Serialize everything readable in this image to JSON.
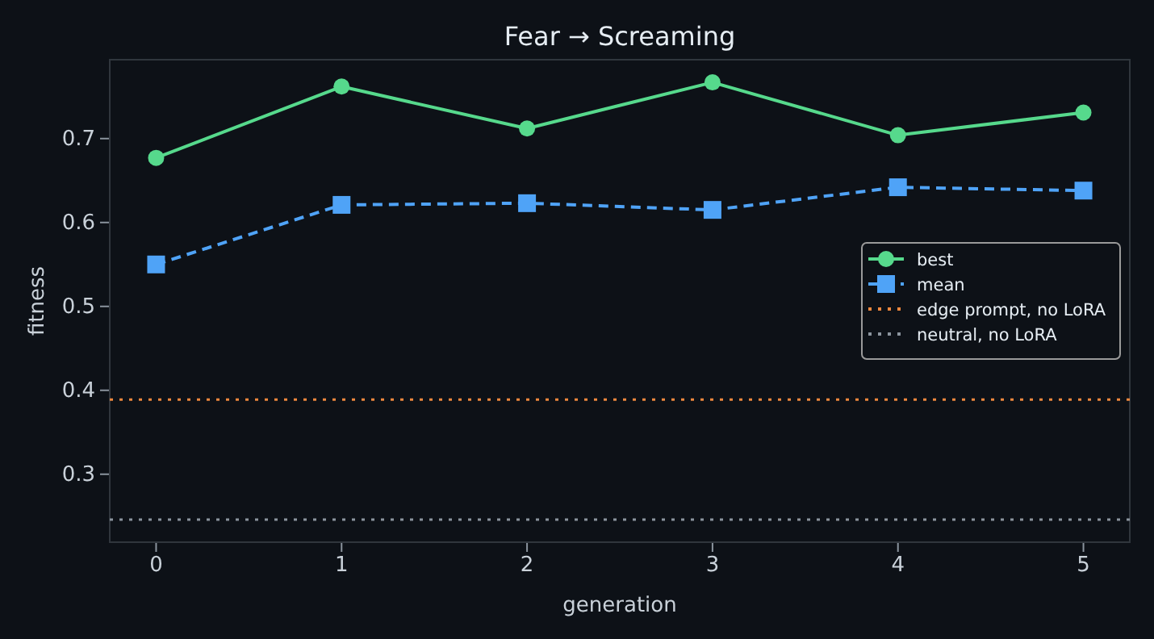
{
  "chart_data": {
    "type": "line",
    "title": "Fear → Screaming",
    "xlabel": "generation",
    "ylabel": "fitness",
    "x": [
      0,
      1,
      2,
      3,
      4,
      5
    ],
    "series": [
      {
        "name": "best",
        "color": "#56d98c",
        "values": [
          0.677,
          0.762,
          0.712,
          0.767,
          0.704,
          0.731
        ],
        "marker": "circle",
        "line_style": "solid"
      },
      {
        "name": "mean",
        "color": "#4fa3f7",
        "values": [
          0.55,
          0.621,
          0.623,
          0.615,
          0.642,
          0.638
        ],
        "marker": "square",
        "line_style": "dashed"
      }
    ],
    "ref_lines": [
      {
        "axis": "y",
        "value": 0.389,
        "label": "edge prompt, no LoRA",
        "color": "#f0883e",
        "line_style": "dotted"
      },
      {
        "axis": "y",
        "value": 0.246,
        "label": "neutral, no LoRA",
        "color": "#8b949e",
        "line_style": "dotted"
      }
    ],
    "xlim": [
      -0.25,
      5.25
    ],
    "xticks": [
      0,
      1,
      2,
      3,
      4,
      5
    ],
    "ylim": [
      0.219,
      0.794
    ],
    "yticks": [
      0.3,
      0.4,
      0.5,
      0.6,
      0.7
    ],
    "grid": false,
    "legend": "right"
  }
}
